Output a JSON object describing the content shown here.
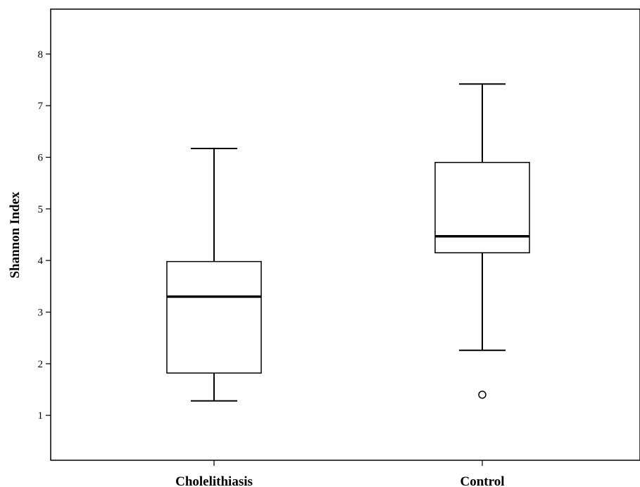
{
  "chart_data": {
    "type": "boxplot",
    "title": "",
    "xlabel": "",
    "ylabel": "Shannon Index",
    "categories": [
      "Cholelithiasis",
      "Control"
    ],
    "boxes": [
      {
        "category": "Cholelithiasis",
        "whisker_low": 1.28,
        "q1": 1.82,
        "median": 3.3,
        "q3": 3.98,
        "whisker_high": 6.17,
        "outliers": []
      },
      {
        "category": "Control",
        "whisker_low": 2.26,
        "q1": 4.15,
        "median": 4.47,
        "q3": 5.9,
        "whisker_high": 7.42,
        "outliers": [
          1.4
        ]
      }
    ],
    "yticks": [
      1,
      2,
      3,
      4,
      5,
      6,
      7,
      8
    ],
    "ylim": [
      0.13,
      8.87
    ],
    "grid": false,
    "legend": "none",
    "colors": {
      "box_fill": "#ffffff",
      "line": "#000000"
    }
  }
}
